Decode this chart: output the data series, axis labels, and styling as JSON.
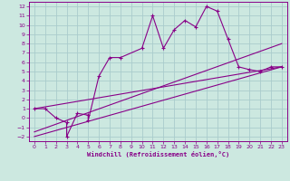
{
  "xlabel": "Windchill (Refroidissement éolien,°C)",
  "bg_color": "#cce8e0",
  "line_color": "#880088",
  "grid_color": "#aacccc",
  "xlim": [
    -0.5,
    23.5
  ],
  "ylim": [
    -2.5,
    12.5
  ],
  "xticks": [
    0,
    1,
    2,
    3,
    4,
    5,
    6,
    7,
    8,
    9,
    10,
    11,
    12,
    13,
    14,
    15,
    16,
    17,
    18,
    19,
    20,
    21,
    22,
    23
  ],
  "yticks": [
    -2,
    -1,
    0,
    1,
    2,
    3,
    4,
    5,
    6,
    7,
    8,
    9,
    10,
    11,
    12
  ],
  "data_x": [
    0,
    1,
    2,
    3,
    3,
    4,
    5,
    5,
    6,
    7,
    8,
    10,
    11,
    12,
    13,
    14,
    15,
    16,
    17,
    18,
    19,
    20,
    21,
    22,
    23
  ],
  "data_y": [
    1,
    1,
    0,
    -0.5,
    -2,
    0.5,
    0.3,
    -0.3,
    4.5,
    6.5,
    6.5,
    7.5,
    11,
    7.5,
    9.5,
    10.5,
    9.8,
    12,
    11.5,
    8.5,
    5.5,
    5.2,
    5.0,
    5.5,
    5.5
  ],
  "line1_x": [
    0,
    23
  ],
  "line1_y": [
    1.0,
    5.5
  ],
  "line2_x": [
    0,
    23
  ],
  "line2_y": [
    -1.5,
    8.0
  ],
  "line3_x": [
    0,
    23
  ],
  "line3_y": [
    -2.0,
    5.5
  ]
}
